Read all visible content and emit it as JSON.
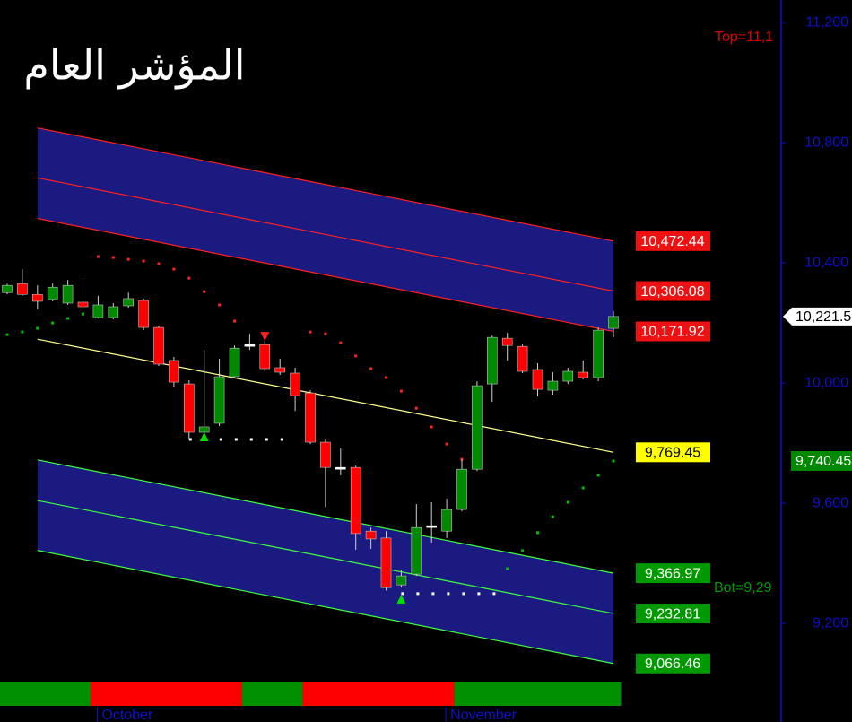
{
  "chart_data": {
    "type": "candlestick",
    "title": "المؤشر العام",
    "categories": [
      null,
      null,
      null,
      null,
      null,
      null,
      "October",
      null,
      null,
      null,
      null,
      null,
      null,
      null,
      null,
      null,
      null,
      null,
      null,
      null,
      null,
      null,
      null,
      null,
      null,
      null,
      null,
      null,
      null,
      "November",
      null,
      null,
      null,
      null,
      null,
      null,
      null,
      null,
      null,
      null,
      null
    ],
    "open": [
      10301,
      10331,
      10295,
      10278,
      10266,
      10269,
      10218,
      10218,
      10257,
      10275,
      10185,
      10075,
      9997,
      9836,
      9866,
      10021,
      10128,
      10128,
      10051,
      10033,
      9967,
      9803,
      9719,
      9719,
      9507,
      9484,
      9328,
      9364,
      9525,
      9507,
      9579,
      9713,
      9997,
      10149,
      10122,
      10045,
      9976,
      10006,
      10036,
      10018,
      10182
    ],
    "high": [
      10331,
      10379,
      10325,
      10331,
      10343,
      10349,
      10290,
      10266,
      10301,
      10281,
      10191,
      10087,
      10009,
      10110,
      10081,
      10125,
      10164,
      10140,
      10081,
      10051,
      9976,
      9812,
      9782,
      9725,
      9519,
      9507,
      9379,
      9597,
      9603,
      9615,
      9746,
      10006,
      10158,
      10167,
      10128,
      10066,
      10036,
      10051,
      10075,
      10185,
      10239
    ],
    "low": [
      10295,
      10290,
      10245,
      10272,
      10260,
      10245,
      10215,
      10212,
      10251,
      10176,
      10057,
      9985,
      9812,
      9830,
      9857,
      10015,
      10110,
      10039,
      10027,
      9907,
      9797,
      9588,
      9693,
      9445,
      9448,
      9310,
      9319,
      9358,
      9469,
      9484,
      9573,
      9707,
      9937,
      10075,
      10033,
      9955,
      9961,
      9997,
      10012,
      10006,
      10152
    ],
    "close": [
      10325,
      10295,
      10272,
      10319,
      10325,
      10254,
      10260,
      10254,
      10281,
      10185,
      10063,
      10003,
      9836,
      9854,
      10021,
      10116,
      10128,
      10048,
      10036,
      9958,
      9803,
      9719,
      9719,
      9499,
      9481,
      9319,
      9358,
      9519,
      9525,
      9579,
      9713,
      9991,
      10152,
      10125,
      10039,
      9979,
      10006,
      10039,
      10018,
      10176,
      10221.5
    ],
    "up_color": "#008a00",
    "down_color": "#ff0000",
    "doji_color": "#ffffff",
    "wick_color": "#d0d0d0",
    "last_close_label": "10,221.5",
    "ylim": [
      9015,
      11275
    ],
    "yticks": [
      {
        "value": 11200,
        "label": "11,200"
      },
      {
        "value": 10800,
        "label": "10,800"
      },
      {
        "value": 10400,
        "label": "10,400"
      },
      {
        "value": 10000,
        "label": "10,000"
      },
      {
        "value": 9600,
        "label": "9,600"
      },
      {
        "value": 9200,
        "label": "9,200"
      }
    ],
    "axis_color": "#1010c8",
    "channels": [
      {
        "x": [
          2,
          40
        ],
        "fill": "#1a1a80",
        "lines": [
          {
            "values": [
              10849,
              10472.44
            ],
            "label": "10,472.44",
            "color": "#ff2020",
            "label_bg": "#ee1111",
            "label_color": "#ffffff"
          },
          {
            "values": [
              10683,
              10306.08
            ],
            "label": "10,306.08",
            "color": "#ff2020",
            "label_bg": "#ee1111",
            "label_color": "#ffffff"
          },
          {
            "values": [
              10548,
              10171.92
            ],
            "label": "10,171.92",
            "color": "#ff2020",
            "label_bg": "#ee1111",
            "label_color": "#ffffff"
          }
        ]
      },
      {
        "x": [
          2,
          40
        ],
        "fill": null,
        "lines": [
          {
            "values": [
              10146,
              9769.45
            ],
            "label": "9,769.45",
            "color": "#ffff90",
            "label_bg": "#ffff00",
            "label_color": "#000000"
          }
        ]
      },
      {
        "x": [
          2,
          40
        ],
        "fill": "#1a1a80",
        "lines": [
          {
            "values": [
              9744,
              9366.97
            ],
            "label": "9,366.97",
            "color": "#40ff40",
            "label_bg": "#009900",
            "label_color": "#ffffff"
          },
          {
            "values": [
              9609,
              9232.81
            ],
            "label": "9,232.81",
            "color": "#40ff40",
            "label_bg": "#009900",
            "label_color": "#ffffff"
          },
          {
            "values": [
              9443,
              9066.46
            ],
            "label": "9,066.46",
            "color": "#40ff40",
            "label_bg": "#009900",
            "label_color": "#ffffff"
          }
        ]
      }
    ],
    "sar": {
      "values": [
        10161,
        10170,
        10182,
        10200,
        10215,
        10230,
        10421,
        10418,
        10412,
        10406,
        10397,
        10379,
        10349,
        10304,
        10260,
        10206,
        null,
        null,
        null,
        null,
        10170,
        10164,
        10134,
        10090,
        10048,
        10018,
        9973,
        9916,
        9854,
        9797,
        9746,
        null,
        null,
        9382,
        9442,
        9502,
        9555,
        9603,
        9651,
        9693,
        9740.45
      ],
      "above_color": "#ff2020",
      "below_color": "#00c000",
      "last_label": "9,740.45",
      "label_bg": "#008800"
    },
    "support": [
      {
        "value": 9812,
        "x": [
          12,
          19
        ]
      },
      {
        "value": 9299,
        "x": [
          26,
          33
        ]
      }
    ],
    "support_color": "#ffffff",
    "signals": [
      {
        "x": 13,
        "value": 9821,
        "color": "#00e000",
        "dir": "up"
      },
      {
        "x": 17,
        "value": 10155,
        "color": "#ff2020",
        "dir": "down"
      },
      {
        "x": 26,
        "value": 9281,
        "color": "#00e000",
        "dir": "up"
      }
    ],
    "trend_strip": [
      {
        "start": 0,
        "end": 5,
        "color": "#009000"
      },
      {
        "start": 6,
        "end": 15,
        "color": "#ff0000"
      },
      {
        "start": 16,
        "end": 19,
        "color": "#009000"
      },
      {
        "start": 20,
        "end": 29,
        "color": "#ff0000"
      },
      {
        "start": 30,
        "end": 40,
        "color": "#009000"
      }
    ],
    "top_label": "Top=11,1",
    "top_color": "#e00000",
    "bot_label": "Bot=9,29",
    "bot_color": "#009900"
  }
}
